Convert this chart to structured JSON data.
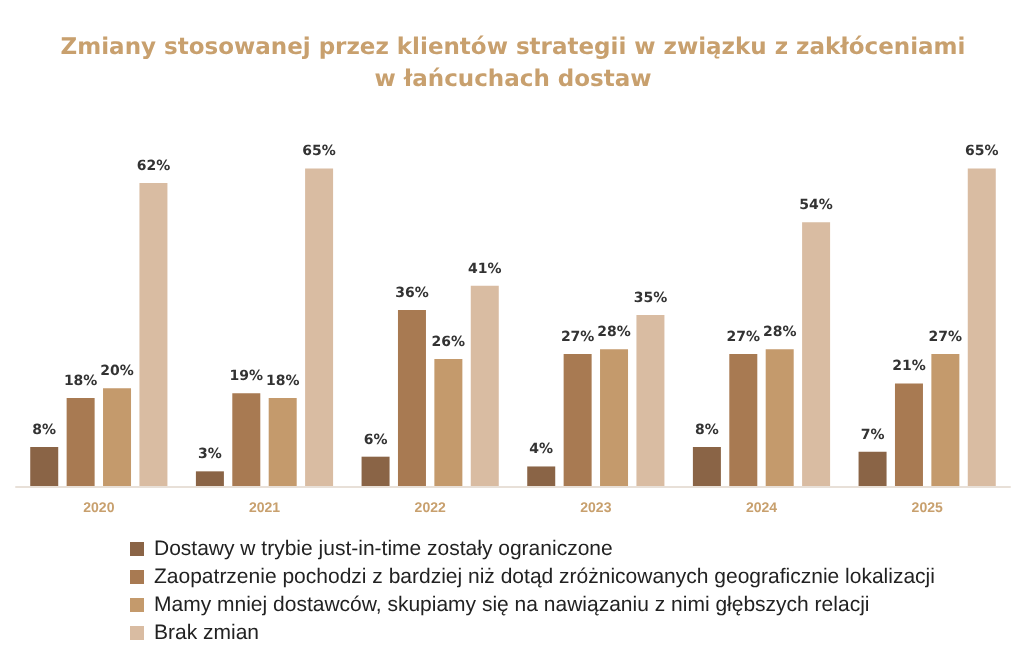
{
  "chart_data": {
    "type": "bar",
    "title": "Zmiany stosowanej przez klientów strategii w związku z zakłóceniami\nw łańcuchach dostaw",
    "categories": [
      "2020",
      "2021",
      "2022",
      "2023",
      "2024",
      "2025"
    ],
    "series": [
      {
        "name": "Dostawy w trybie just-in-time zostały ograniczone",
        "color": "#8a6446",
        "values": [
          8,
          3,
          6,
          4,
          8,
          7
        ],
        "value_labels": [
          "8%",
          "3%",
          "6%",
          "4%",
          "8%",
          "7%"
        ]
      },
      {
        "name": "Zaopatrzenie pochodzi z bardziej niż dotąd zróżnicowanych geograficznie lokalizacji",
        "color": "#a87a52",
        "values": [
          18,
          19,
          36,
          27,
          27,
          21
        ],
        "value_labels": [
          "18%",
          "19%",
          "36%",
          "27%",
          "27%",
          "21%"
        ]
      },
      {
        "name": "Mamy mniej dostawców, skupiamy się na nawiązaniu z nimi głębszych relacji",
        "color": "#c49a6c",
        "values": [
          20,
          18,
          26,
          28,
          28,
          27
        ],
        "value_labels": [
          "20%",
          "18%",
          "26%",
          "28%",
          "28%",
          "27%"
        ]
      },
      {
        "name": "Brak zmian",
        "color": "#d9bca2",
        "values": [
          62,
          65,
          41,
          35,
          54,
          65
        ],
        "value_labels": [
          "62%",
          "65%",
          "41%",
          "35%",
          "54%",
          "65%"
        ]
      }
    ],
    "legend": "bottom"
  }
}
